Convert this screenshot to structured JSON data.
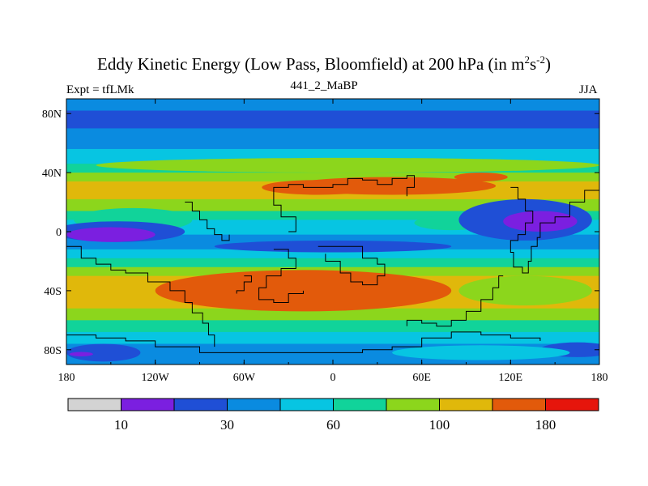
{
  "chart_data": {
    "type": "heatmap",
    "title_main": "Eddy Kinetic Energy (Low Pass, Bloomfield) at 200 hPa (in m",
    "title_sup1": "2",
    "title_mid": "s",
    "title_sup2": "-2",
    "title_end": ")",
    "subtitle_left": "Expt = tfLMk",
    "subtitle_center": "441_2_MaBP",
    "subtitle_right": "JJA",
    "x_range": [
      -180,
      180
    ],
    "y_range": [
      -90,
      90
    ],
    "x_ticks": [
      {
        "value": -180,
        "label": "180"
      },
      {
        "value": -120,
        "label": "120W"
      },
      {
        "value": -60,
        "label": "60W"
      },
      {
        "value": 0,
        "label": "0"
      },
      {
        "value": 60,
        "label": "60E"
      },
      {
        "value": 120,
        "label": "120E"
      },
      {
        "value": 180,
        "label": "180"
      }
    ],
    "y_ticks": [
      {
        "value": 80,
        "label": "80N"
      },
      {
        "value": 40,
        "label": "40N"
      },
      {
        "value": 0,
        "label": "0"
      },
      {
        "value": -40,
        "label": "40S"
      },
      {
        "value": -80,
        "label": "80S"
      }
    ],
    "colorbar": {
      "colors": [
        "#d3d3d3",
        "#7b1fe0",
        "#1f4fd6",
        "#0a8be0",
        "#07c5e2",
        "#11d39a",
        "#8cd61c",
        "#e0b80b",
        "#e25a0b",
        "#e6150c"
      ],
      "labels": [
        {
          "after_box": 1,
          "text": "10"
        },
        {
          "after_box": 3,
          "text": "30"
        },
        {
          "after_box": 5,
          "text": "60"
        },
        {
          "after_box": 7,
          "text": "100"
        },
        {
          "after_box": 9,
          "text": "180"
        }
      ]
    },
    "latitude_bands": [
      {
        "lat": [
          90,
          82
        ],
        "level": 3
      },
      {
        "lat": [
          82,
          70
        ],
        "level": 2
      },
      {
        "lat": [
          70,
          56
        ],
        "level": 3
      },
      {
        "lat": [
          56,
          46
        ],
        "level": 4
      },
      {
        "lat": [
          46,
          40
        ],
        "level": 5
      },
      {
        "lat": [
          40,
          34
        ],
        "level": 6
      },
      {
        "lat": [
          34,
          22
        ],
        "level": 7
      },
      {
        "lat": [
          22,
          14
        ],
        "level": 6
      },
      {
        "lat": [
          14,
          8
        ],
        "level": 5
      },
      {
        "lat": [
          8,
          -2
        ],
        "level": 4
      },
      {
        "lat": [
          -2,
          -12
        ],
        "level": 3
      },
      {
        "lat": [
          -12,
          -18
        ],
        "level": 4
      },
      {
        "lat": [
          -18,
          -24
        ],
        "level": 5
      },
      {
        "lat": [
          -24,
          -30
        ],
        "level": 6
      },
      {
        "lat": [
          -30,
          -52
        ],
        "level": 7
      },
      {
        "lat": [
          -52,
          -60
        ],
        "level": 6
      },
      {
        "lat": [
          -60,
          -68
        ],
        "level": 5
      },
      {
        "lat": [
          -68,
          -76
        ],
        "level": 4
      },
      {
        "lat": [
          -76,
          -90
        ],
        "level": 3
      }
    ],
    "features": [
      {
        "shape": "ellipse",
        "lon": 10,
        "lat": 45,
        "rlon": 170,
        "rlat": 5,
        "level": 6
      },
      {
        "shape": "ellipse",
        "lon": 40,
        "lat": 31,
        "rlon": 70,
        "rlat": 6,
        "level": 8
      },
      {
        "shape": "ellipse",
        "lon": 100,
        "lat": 37,
        "rlon": 18,
        "rlat": 3,
        "level": 8
      },
      {
        "shape": "ellipse",
        "lon": -10,
        "lat": 30,
        "rlon": 38,
        "rlat": 5,
        "level": 8
      },
      {
        "shape": "ellipse",
        "lon": -135,
        "lat": 8,
        "rlon": 40,
        "rlat": 8,
        "level": 5
      },
      {
        "shape": "ellipse",
        "lon": -145,
        "lat": 0,
        "rlon": 45,
        "rlat": 7,
        "level": 2
      },
      {
        "shape": "ellipse",
        "lon": -150,
        "lat": -2,
        "rlon": 30,
        "rlat": 5,
        "level": 1
      },
      {
        "shape": "ellipse",
        "lon": 0,
        "lat": -10,
        "rlon": 80,
        "rlat": 4,
        "level": 2
      },
      {
        "shape": "ellipse",
        "lon": 80,
        "lat": 6,
        "rlon": 25,
        "rlat": 5,
        "level": 5
      },
      {
        "shape": "ellipse",
        "lon": 130,
        "lat": 8,
        "rlon": 45,
        "rlat": 14,
        "level": 2
      },
      {
        "shape": "ellipse",
        "lon": 140,
        "lat": 7,
        "rlon": 25,
        "rlat": 7,
        "level": 1
      },
      {
        "shape": "ellipse",
        "lon": -20,
        "lat": -40,
        "rlon": 100,
        "rlat": 14,
        "level": 8
      },
      {
        "shape": "ellipse",
        "lon": 130,
        "lat": -40,
        "rlon": 45,
        "rlat": 10,
        "level": 6
      },
      {
        "shape": "ellipse",
        "lon": -155,
        "lat": -82,
        "rlon": 25,
        "rlat": 6,
        "level": 2
      },
      {
        "shape": "ellipse",
        "lon": 165,
        "lat": -80,
        "rlon": 25,
        "rlat": 5,
        "level": 2
      },
      {
        "shape": "ellipse",
        "lon": -170,
        "lat": -83,
        "rlon": 8,
        "rlat": 1.5,
        "level": 1
      },
      {
        "shape": "ellipse",
        "lon": 100,
        "lat": -82,
        "rlon": 60,
        "rlat": 5,
        "level": 4
      }
    ],
    "coastlines": [
      [
        [
          -180,
          -70
        ],
        [
          -160,
          -72
        ],
        [
          -140,
          -74
        ],
        [
          -120,
          -78
        ],
        [
          -90,
          -82
        ],
        [
          -60,
          -82
        ],
        [
          -30,
          -82
        ],
        [
          0,
          -82
        ],
        [
          20,
          -80
        ],
        [
          40,
          -78
        ],
        [
          60,
          -72
        ],
        [
          80,
          -68
        ],
        [
          100,
          -70
        ],
        [
          120,
          -72
        ],
        [
          140,
          -74
        ]
      ],
      [
        [
          -180,
          -10
        ],
        [
          -170,
          -18
        ],
        [
          -160,
          -22
        ],
        [
          -150,
          -26
        ],
        [
          -140,
          -28
        ],
        [
          -125,
          -34
        ],
        [
          -110,
          -40
        ],
        [
          -100,
          -48
        ],
        [
          -95,
          -55
        ],
        [
          -88,
          -62
        ],
        [
          -84,
          -70
        ],
        [
          -80,
          -78
        ]
      ],
      [
        [
          -40,
          -12
        ],
        [
          -30,
          -18
        ],
        [
          -25,
          -25
        ],
        [
          -35,
          -30
        ],
        [
          -45,
          -38
        ],
        [
          -50,
          -46
        ],
        [
          -40,
          -48
        ],
        [
          -30,
          -42
        ],
        [
          -20,
          -40
        ]
      ],
      [
        [
          -10,
          -10
        ],
        [
          10,
          -10
        ],
        [
          20,
          -18
        ],
        [
          30,
          -22
        ],
        [
          35,
          -30
        ],
        [
          30,
          -36
        ],
        [
          20,
          -34
        ],
        [
          12,
          -28
        ],
        [
          5,
          -20
        ],
        [
          -5,
          -15
        ]
      ],
      [
        [
          -30,
          0
        ],
        [
          -25,
          10
        ],
        [
          -35,
          18
        ],
        [
          -40,
          30
        ],
        [
          -30,
          32
        ],
        [
          -20,
          30
        ],
        [
          0,
          32
        ],
        [
          10,
          36
        ],
        [
          20,
          35
        ],
        [
          30,
          32
        ],
        [
          40,
          36
        ],
        [
          50,
          38
        ],
        [
          55,
          30
        ],
        [
          50,
          24
        ]
      ],
      [
        [
          120,
          30
        ],
        [
          125,
          22
        ],
        [
          130,
          14
        ],
        [
          135,
          6
        ],
        [
          130,
          -2
        ],
        [
          125,
          -6
        ],
        [
          120,
          -14
        ],
        [
          122,
          -24
        ],
        [
          128,
          -28
        ],
        [
          132,
          -20
        ],
        [
          134,
          -10
        ],
        [
          138,
          -4
        ],
        [
          140,
          6
        ],
        [
          150,
          10
        ],
        [
          160,
          20
        ],
        [
          170,
          28
        ],
        [
          180,
          24
        ]
      ],
      [
        [
          115,
          -30
        ],
        [
          112,
          -38
        ],
        [
          108,
          -46
        ],
        [
          100,
          -54
        ],
        [
          90,
          -60
        ],
        [
          80,
          -64
        ],
        [
          70,
          -62
        ],
        [
          60,
          -60
        ],
        [
          50,
          -64
        ]
      ],
      [
        [
          -60,
          -30
        ],
        [
          -55,
          -34
        ],
        [
          -60,
          -40
        ],
        [
          -65,
          -42
        ]
      ],
      [
        [
          -100,
          20
        ],
        [
          -95,
          14
        ],
        [
          -90,
          8
        ],
        [
          -85,
          2
        ],
        [
          -80,
          -2
        ],
        [
          -75,
          -6
        ],
        [
          -70,
          -2
        ]
      ]
    ]
  }
}
